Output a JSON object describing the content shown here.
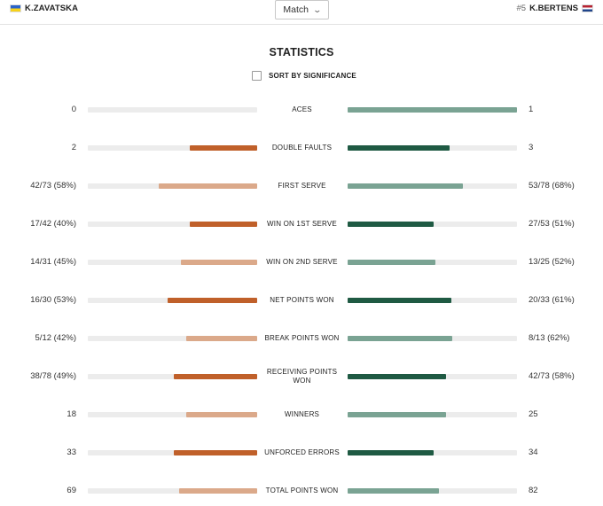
{
  "header": {
    "left_player": {
      "name": "K.ZAVATSKA",
      "flag": "ukraine-flag-icon"
    },
    "right_player": {
      "seed": "#5",
      "name": "K.BERTENS",
      "flag": "netherlands-flag-icon"
    },
    "select": {
      "value": "Match"
    }
  },
  "title": "STATISTICS",
  "sort_label": "SORT BY SIGNIFICANCE",
  "colors": {
    "left_winner": "#c0602a",
    "left_loser": "#dba98a",
    "right_winner": "#1f5a43",
    "right_loser": "#7aa393",
    "track": "#ececec"
  },
  "stats": [
    {
      "label": "ACES",
      "left": "0",
      "right": "1",
      "left_fill": 0,
      "right_fill": 1.0,
      "winner": "right"
    },
    {
      "label": "DOUBLE FAULTS",
      "left": "2",
      "right": "3",
      "left_fill": 0.4,
      "right_fill": 0.6,
      "winner": "both"
    },
    {
      "label": "FIRST SERVE",
      "left": "42/73 (58%)",
      "right": "53/78 (68%)",
      "left_fill": 0.58,
      "right_fill": 0.68,
      "winner": "right"
    },
    {
      "label": "WIN ON 1ST SERVE",
      "left": "17/42 (40%)",
      "right": "27/53 (51%)",
      "left_fill": 0.4,
      "right_fill": 0.51,
      "winner": "both"
    },
    {
      "label": "WIN ON 2ND SERVE",
      "left": "14/31 (45%)",
      "right": "13/25 (52%)",
      "left_fill": 0.45,
      "right_fill": 0.52,
      "winner": "right"
    },
    {
      "label": "NET POINTS WON",
      "left": "16/30 (53%)",
      "right": "20/33 (61%)",
      "left_fill": 0.53,
      "right_fill": 0.61,
      "winner": "both"
    },
    {
      "label": "BREAK POINTS WON",
      "left": "5/12 (42%)",
      "right": "8/13 (62%)",
      "left_fill": 0.42,
      "right_fill": 0.62,
      "winner": "right"
    },
    {
      "label": "RECEIVING POINTS WON",
      "left": "38/78 (49%)",
      "right": "42/73 (58%)",
      "left_fill": 0.49,
      "right_fill": 0.58,
      "winner": "both"
    },
    {
      "label": "WINNERS",
      "left": "18",
      "right": "25",
      "left_fill": 0.42,
      "right_fill": 0.58,
      "winner": "right"
    },
    {
      "label": "UNFORCED ERRORS",
      "left": "33",
      "right": "34",
      "left_fill": 0.49,
      "right_fill": 0.51,
      "winner": "both"
    },
    {
      "label": "TOTAL POINTS WON",
      "left": "69",
      "right": "82",
      "left_fill": 0.46,
      "right_fill": 0.54,
      "winner": "right"
    }
  ]
}
